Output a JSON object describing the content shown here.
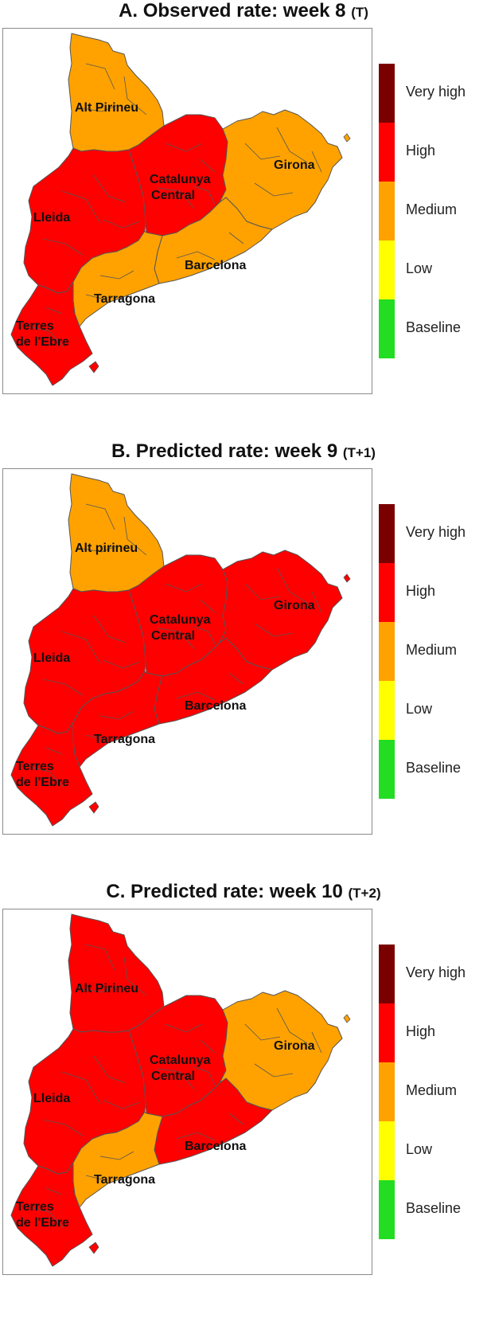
{
  "colors": {
    "very_high": "#7a0000",
    "high": "#ff0000",
    "medium": "#ffa200",
    "low": "#ffff00",
    "baseline": "#22dd22",
    "border": "#555555"
  },
  "legend": {
    "items": [
      {
        "label": "Very high",
        "color_key": "very_high"
      },
      {
        "label": "High",
        "color_key": "high"
      },
      {
        "label": "Medium",
        "color_key": "medium"
      },
      {
        "label": "Low",
        "color_key": "low"
      },
      {
        "label": "Baseline",
        "color_key": "baseline"
      }
    ]
  },
  "panels": [
    {
      "title": "A. Observed rate: week 8",
      "suffix": "(T)",
      "regions": {
        "Alt Pirineu": "medium",
        "Lleida": "high",
        "Catalunya Central": "high",
        "Girona": "medium",
        "Barcelona": "medium",
        "Tarragona": "medium",
        "Terres de l'Ebre": "high"
      },
      "labels": {
        "Alt Pirineu": [
          "Alt Pirineu"
        ],
        "Lleida": [
          "Lleida"
        ],
        "Catalunya Central": [
          "Catalunya",
          "Central"
        ],
        "Girona": [
          "Girona"
        ],
        "Barcelona": [
          "Barcelona"
        ],
        "Tarragona": [
          "Tarragona"
        ],
        "Terres de l'Ebre": [
          "Terres",
          "de l'Ebre"
        ]
      }
    },
    {
      "title": "B. Predicted rate: week 9",
      "suffix": "(T+1)",
      "regions": {
        "Alt Pirineu": "medium",
        "Lleida": "high",
        "Catalunya Central": "high",
        "Girona": "high",
        "Barcelona": "high",
        "Tarragona": "high",
        "Terres de l'Ebre": "high"
      },
      "labels": {
        "Alt Pirineu": [
          "Alt pirineu"
        ],
        "Lleida": [
          "Lleida"
        ],
        "Catalunya Central": [
          "Catalunya",
          "Central"
        ],
        "Girona": [
          "Girona"
        ],
        "Barcelona": [
          "Barcelona"
        ],
        "Tarragona": [
          "Tarragona"
        ],
        "Terres de l'Ebre": [
          "Terres",
          "de l'Ebre"
        ]
      }
    },
    {
      "title": "C. Predicted rate: week 10",
      "suffix": "(T+2)",
      "regions": {
        "Alt Pirineu": "high",
        "Lleida": "high",
        "Catalunya Central": "high",
        "Girona": "medium",
        "Barcelona": "high",
        "Tarragona": "medium",
        "Terres de l'Ebre": "high"
      },
      "labels": {
        "Alt Pirineu": [
          "Alt Pirineu"
        ],
        "Lleida": [
          "Lleida"
        ],
        "Catalunya Central": [
          "Catalunya",
          "Central"
        ],
        "Girona": [
          "Girona"
        ],
        "Barcelona": [
          "Barcelona"
        ],
        "Tarragona": [
          "Tarragona"
        ],
        "Terres de l'Ebre": [
          "Terres",
          "de l'Ebre"
        ]
      }
    }
  ]
}
